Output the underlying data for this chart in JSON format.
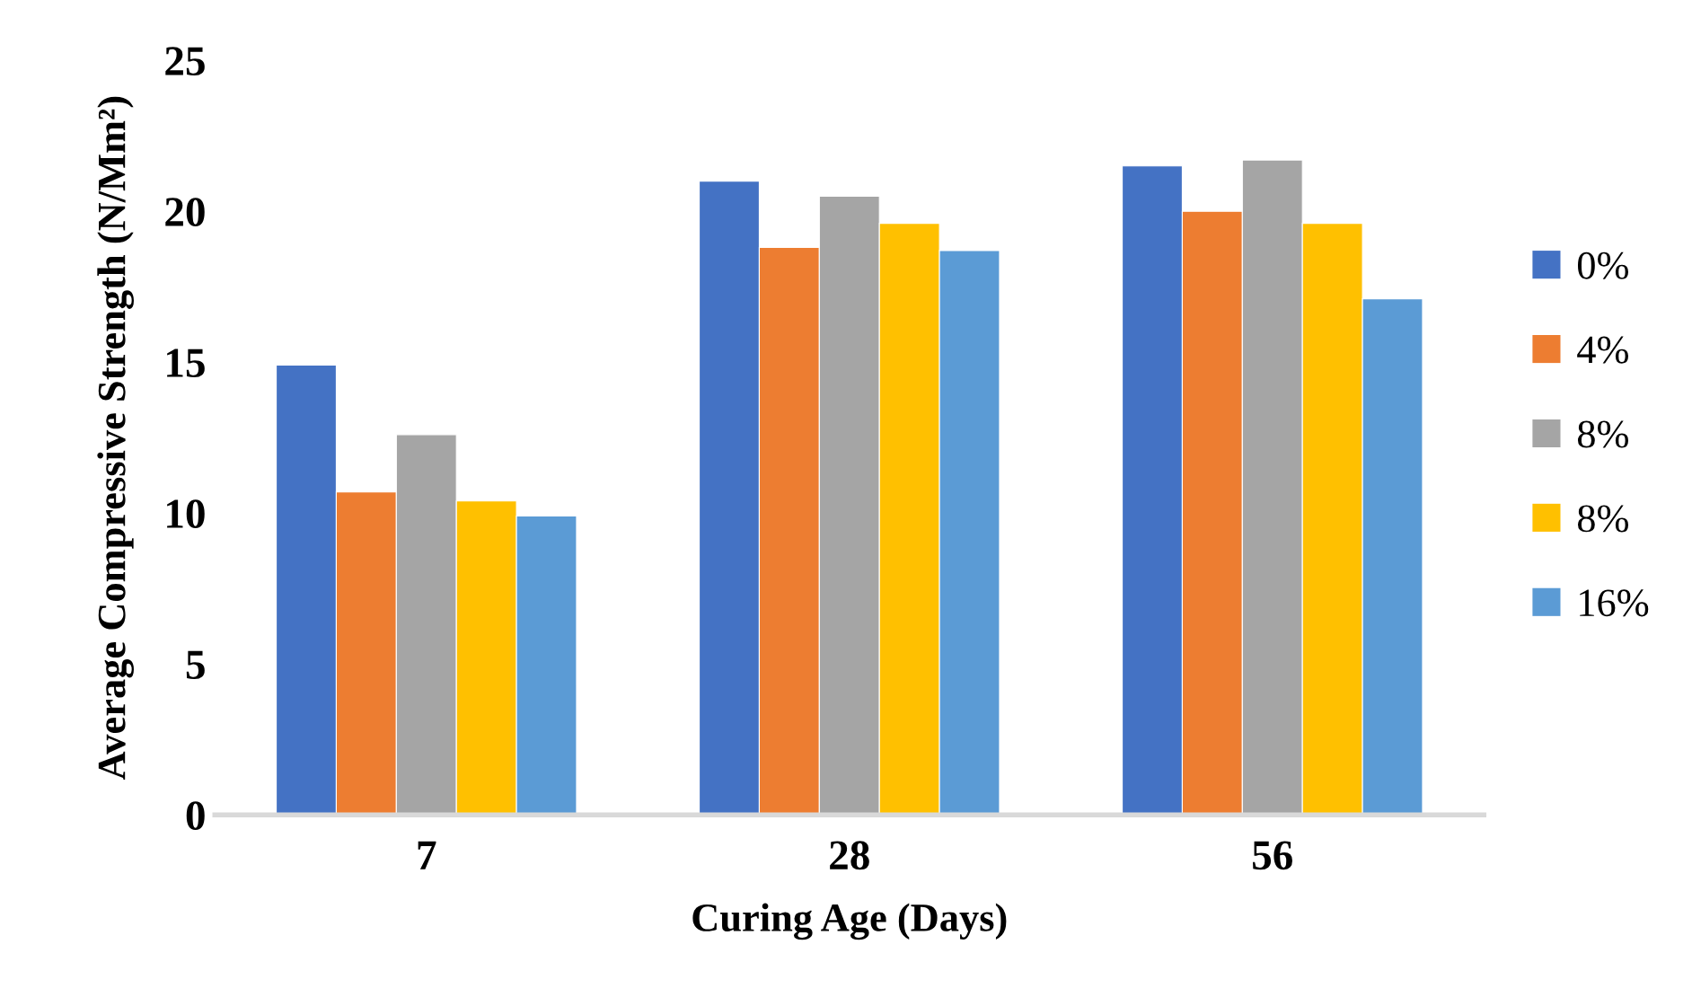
{
  "chart_data": {
    "type": "bar",
    "xlabel": "Curing Age (Days)",
    "ylabel": "Average Compressive Strength (N/Mm²)",
    "categories": [
      "7",
      "28",
      "56"
    ],
    "series": [
      {
        "name": "0%",
        "color": "#4472c4",
        "values": [
          14.9,
          21.0,
          21.5
        ]
      },
      {
        "name": "4%",
        "color": "#ed7d31",
        "values": [
          10.7,
          18.8,
          20.0
        ]
      },
      {
        "name": "8%",
        "color": "#a5a5a5",
        "values": [
          12.6,
          20.5,
          21.7
        ]
      },
      {
        "name": "8%",
        "color": "#ffc000",
        "values": [
          10.4,
          19.6,
          19.6
        ]
      },
      {
        "name": "16%",
        "color": "#5b9bd5",
        "values": [
          9.9,
          18.7,
          17.1
        ]
      }
    ],
    "ylim": [
      0,
      25
    ],
    "yticks": [
      0,
      5,
      10,
      15,
      20,
      25
    ],
    "grid": false,
    "legend": "right"
  }
}
